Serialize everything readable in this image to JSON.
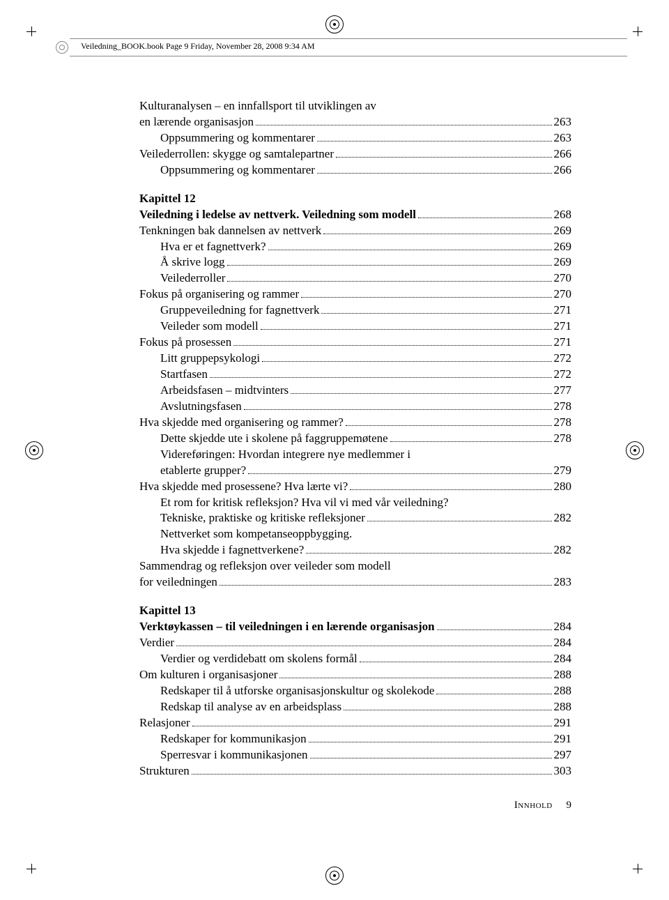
{
  "header": "Veiledning_BOOK.book  Page 9  Friday, November 28, 2008  9:34 AM",
  "section_intro": {
    "title_line1": "Kulturanalysen – en innfallsport til utviklingen av",
    "title_line2": "en lærende organisasjon",
    "title_page": "263",
    "entries": [
      {
        "label": "Oppsummering og kommentarer",
        "page": "263",
        "indent": 1
      },
      {
        "label": "Veilederrollen: skygge og samtalepartner",
        "page": "266",
        "indent": 0
      },
      {
        "label": "Oppsummering og kommentarer",
        "page": "266",
        "indent": 1
      }
    ]
  },
  "chapter12": {
    "heading": "Kapittel 12",
    "title": "Veiledning i ledelse av nettverk. Veiledning som modell",
    "title_page": "268",
    "entries": [
      {
        "label": "Tenkningen bak dannelsen av nettverk",
        "page": "269",
        "indent": 0
      },
      {
        "label": "Hva er et fagnettverk?",
        "page": "269",
        "indent": 1
      },
      {
        "label": "Å skrive logg",
        "page": "269",
        "indent": 1
      },
      {
        "label": "Veilederroller",
        "page": "270",
        "indent": 1
      },
      {
        "label": "Fokus på organisering og rammer",
        "page": "270",
        "indent": 0
      },
      {
        "label": "Gruppeveiledning for fagnettverk",
        "page": "271",
        "indent": 1
      },
      {
        "label": "Veileder som modell",
        "page": "271",
        "indent": 1
      },
      {
        "label": "Fokus på prosessen",
        "page": "271",
        "indent": 0
      },
      {
        "label": "Litt gruppepsykologi",
        "page": "272",
        "indent": 1
      },
      {
        "label": "Startfasen",
        "page": "272",
        "indent": 1
      },
      {
        "label": "Arbeidsfasen – midtvinters",
        "page": "277",
        "indent": 1
      },
      {
        "label": "Avslutningsfasen",
        "page": "278",
        "indent": 1
      },
      {
        "label": "Hva skjedde med organisering og rammer?",
        "page": "278",
        "indent": 0
      },
      {
        "label": "Dette skjedde ute i skolene på faggruppemøtene",
        "page": "278",
        "indent": 1
      },
      {
        "label_line1": "Videreføringen: Hvordan integrere nye medlemmer i",
        "label_line2": "etablerte grupper?",
        "page": "279",
        "indent": 1,
        "multiline": true
      },
      {
        "label": "Hva skjedde med prosessene? Hva lærte vi?",
        "page": "280",
        "indent": 0
      },
      {
        "label_line1": "Et rom for kritisk refleksjon? Hva vil vi med vår veiledning?",
        "label_line2": "Tekniske, praktiske og kritiske refleksjoner",
        "page": "282",
        "indent": 1,
        "multiline": true
      },
      {
        "label_line1": "Nettverket som kompetanseoppbygging.",
        "label_line2": "Hva skjedde i fagnettverkene?",
        "page": "282",
        "indent": 1,
        "multiline": true
      },
      {
        "label_line1": "Sammendrag og refleksjon over veileder som modell",
        "label_line2": "for veiledningen",
        "page": "283",
        "indent": 0,
        "multiline": true
      }
    ]
  },
  "chapter13": {
    "heading": "Kapittel 13",
    "title": "Verktøykassen – til veiledningen i en lærende organisasjon",
    "title_page": "284",
    "entries": [
      {
        "label": "Verdier",
        "page": "284",
        "indent": 0
      },
      {
        "label": "Verdier og verdidebatt om skolens formål",
        "page": "284",
        "indent": 1
      },
      {
        "label": "Om kulturen i organisasjoner",
        "page": "288",
        "indent": 0
      },
      {
        "label": "Redskaper til å utforske organisasjonskultur og skolekode",
        "page": "288",
        "indent": 1
      },
      {
        "label": "Redskap til analyse av en arbeidsplass",
        "page": "288",
        "indent": 1
      },
      {
        "label": "Relasjoner",
        "page": "291",
        "indent": 0
      },
      {
        "label": "Redskaper for kommunikasjon",
        "page": "291",
        "indent": 1
      },
      {
        "label": "Sperresvar i kommunikasjonen",
        "page": "297",
        "indent": 1
      },
      {
        "label": "Strukturen",
        "page": "303",
        "indent": 0
      }
    ]
  },
  "footer": {
    "label": "Innhold",
    "page": "9"
  }
}
